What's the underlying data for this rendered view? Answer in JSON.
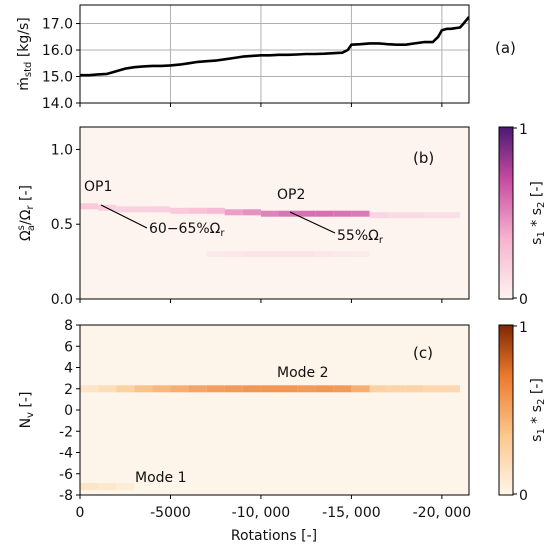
{
  "chart_data": [
    {
      "panel": "(a)",
      "type": "line",
      "xlabel": "",
      "ylabel": "ṁ_std [kg/s]",
      "ylabel_main": "ṁ",
      "ylabel_sub": "std",
      "ylabel_unit": " [kg/s]",
      "ylim": [
        14.0,
        17.7
      ],
      "xlim": [
        0,
        21500
      ],
      "yticks": [
        "14.0",
        "15.0",
        "16.0",
        "17.0"
      ],
      "grid": true,
      "series": [
        {
          "x": [
            0,
            500,
            1000,
            1500,
            2000,
            2500,
            3000,
            3500,
            4000,
            4500,
            5000,
            5500,
            6000,
            6500,
            7000,
            7500,
            8000,
            8500,
            9000,
            9500,
            10000,
            10500,
            11000,
            11500,
            12000,
            12500,
            13000,
            13500,
            14000,
            14500,
            14800,
            15000,
            15500,
            16000,
            16500,
            17000,
            17500,
            18000,
            18500,
            19000,
            19500,
            19800,
            20000,
            20300,
            20500,
            21000,
            21200,
            21500
          ],
          "y": [
            15.05,
            15.05,
            15.08,
            15.1,
            15.2,
            15.3,
            15.35,
            15.38,
            15.4,
            15.4,
            15.42,
            15.45,
            15.5,
            15.55,
            15.58,
            15.6,
            15.65,
            15.7,
            15.75,
            15.78,
            15.8,
            15.8,
            15.82,
            15.82,
            15.83,
            15.85,
            15.85,
            15.86,
            15.88,
            15.9,
            16.0,
            16.2,
            16.22,
            16.25,
            16.25,
            16.22,
            16.2,
            16.2,
            16.25,
            16.3,
            16.3,
            16.5,
            16.75,
            16.8,
            16.8,
            16.85,
            17.0,
            17.25
          ]
        }
      ]
    },
    {
      "panel": "(b)",
      "type": "heatmap",
      "xlabel": "",
      "ylabel": "Ω_a^s/Ω_r [-]",
      "ylim": [
        0.0,
        1.15
      ],
      "xlim": [
        0,
        21500
      ],
      "yticks": [
        "0.0",
        "0.5",
        "1.0"
      ],
      "colorbar_label": "s1 * s2 [-]",
      "colorbar_ticks": [
        "0",
        "1"
      ],
      "annotations": [
        "OP1",
        "OP2",
        "60−65%Ωr",
        "55%Ωr"
      ],
      "bands": [
        {
          "x": [
            0,
            1000,
            2000,
            3000,
            4000,
            5000,
            6000,
            7000,
            8000,
            9000,
            10000,
            11000,
            12000,
            13000,
            14000,
            15000,
            16000,
            17000,
            18000,
            19000,
            20000
          ],
          "y": [
            0.62,
            0.61,
            0.6,
            0.6,
            0.6,
            0.59,
            0.59,
            0.59,
            0.58,
            0.58,
            0.57,
            0.57,
            0.57,
            0.57,
            0.57,
            0.57,
            0.56,
            0.56,
            0.56,
            0.56,
            0.56
          ],
          "intensity": [
            0.25,
            0.22,
            0.2,
            0.2,
            0.22,
            0.25,
            0.3,
            0.35,
            0.45,
            0.5,
            0.55,
            0.6,
            0.62,
            0.62,
            0.6,
            0.58,
            0.18,
            0.15,
            0.15,
            0.12,
            0.12
          ]
        },
        {
          "x": [
            7000,
            8000,
            9000,
            10000,
            11000,
            12000,
            13000,
            14000,
            15000
          ],
          "y": [
            0.3,
            0.3,
            0.3,
            0.3,
            0.3,
            0.3,
            0.3,
            0.3,
            0.3
          ],
          "intensity": [
            0.06,
            0.08,
            0.1,
            0.1,
            0.1,
            0.1,
            0.08,
            0.06,
            0.05
          ]
        }
      ]
    },
    {
      "panel": "(c)",
      "type": "heatmap",
      "xlabel": "Rotations [-]",
      "ylabel": "N_v [-]",
      "ylim": [
        -8,
        8
      ],
      "xlim": [
        0,
        21500
      ],
      "yticks": [
        "-8",
        "-6",
        "-4",
        "-2",
        "0",
        "2",
        "4",
        "6",
        "8"
      ],
      "xticks": [
        "0",
        "-5000",
        "-10, 000",
        "-15, 000",
        "-20, 000"
      ],
      "xtick_values": [
        0,
        5000,
        10000,
        15000,
        20000
      ],
      "colorbar_label": "s1 * s2 [-]",
      "colorbar_ticks": [
        "0",
        "1"
      ],
      "annotations": [
        "Mode 1",
        "Mode 2"
      ],
      "bands": [
        {
          "x": [
            0,
            1000,
            2000,
            3000,
            4000,
            5000,
            6000,
            7000,
            8000,
            9000,
            10000,
            11000,
            12000,
            13000,
            14000,
            15000,
            16000,
            17000,
            18000,
            19000,
            20000
          ],
          "y": [
            2,
            2,
            2,
            2,
            2,
            2,
            2,
            2,
            2,
            2,
            2,
            2,
            2,
            2,
            2,
            2,
            2,
            2,
            2,
            2,
            2
          ],
          "intensity": [
            0.15,
            0.2,
            0.3,
            0.4,
            0.45,
            0.5,
            0.55,
            0.58,
            0.6,
            0.62,
            0.62,
            0.62,
            0.6,
            0.62,
            0.6,
            0.5,
            0.3,
            0.28,
            0.28,
            0.25,
            0.25
          ]
        },
        {
          "x": [
            0,
            1000,
            2000
          ],
          "y": [
            -7.2,
            -7.2,
            -7.2
          ],
          "intensity": [
            0.15,
            0.12,
            0.08
          ]
        }
      ]
    }
  ]
}
